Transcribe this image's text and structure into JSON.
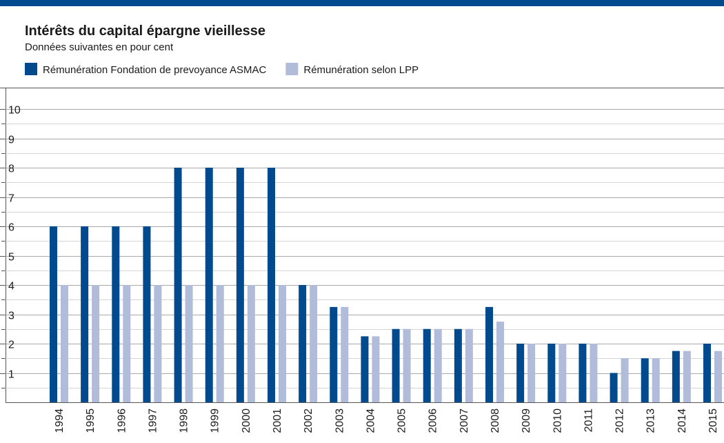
{
  "chart_data": {
    "type": "bar",
    "title": "Intérêts du capital épargne vieillesse",
    "subtitle": "Données suivantes en pour cent",
    "categories": [
      "1994",
      "1995",
      "1996",
      "1997",
      "1998",
      "1999",
      "2000",
      "2001",
      "2002",
      "2003",
      "2004",
      "2005",
      "2006",
      "2007",
      "2008",
      "2009",
      "2010",
      "2011",
      "2012",
      "2013",
      "2014",
      "2015"
    ],
    "series": [
      {
        "name": "Rémunération Fondation de prevoyance ASMAC",
        "color": "#004a8d",
        "values": [
          6,
          6,
          6,
          6,
          8,
          8,
          8,
          8,
          4,
          3.25,
          2.25,
          2.5,
          2.5,
          2.5,
          3.25,
          2,
          2,
          2,
          1,
          1.5,
          1.75,
          2
        ]
      },
      {
        "name": "Rémunération selon LPP",
        "color": "#b0bcd9",
        "values": [
          4,
          4,
          4,
          4,
          4,
          4,
          4,
          4,
          4,
          3.25,
          2.25,
          2.5,
          2.5,
          2.5,
          2.75,
          2,
          2,
          2,
          1.5,
          1.5,
          1.75,
          1.75
        ]
      }
    ],
    "ylim": [
      0,
      10
    ],
    "yticks": [
      1,
      2,
      3,
      4,
      5,
      6,
      7,
      8,
      9,
      10
    ],
    "minor_yticks": [
      0.5,
      1.5,
      2.5,
      3.5,
      4.5,
      5.5,
      6.5,
      7.5,
      8.5,
      9.5
    ],
    "grid": true,
    "legend": "top-left"
  }
}
